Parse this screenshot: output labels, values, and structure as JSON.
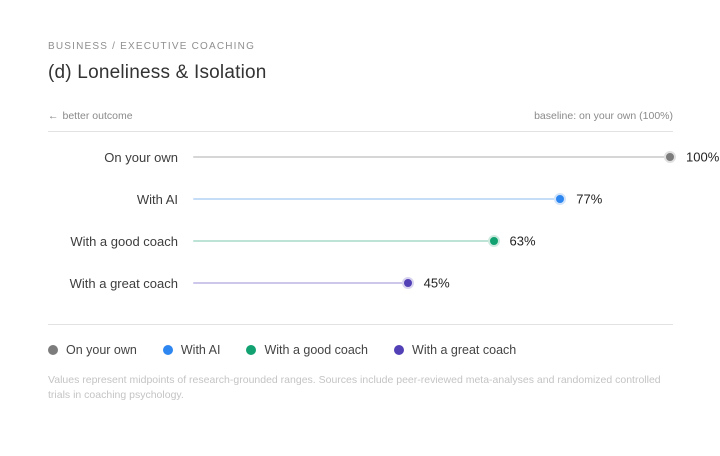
{
  "header": {
    "eyebrow": "BUSINESS / EXECUTIVE COACHING",
    "title": "(d) Loneliness & Isolation"
  },
  "meta": {
    "arrow": "←",
    "better_label": "better outcome",
    "baseline": "baseline: on your own (100%)"
  },
  "footnote": "Values represent midpoints of research-grounded ranges. Sources include peer-reviewed meta-analyses and randomized controlled trials in coaching psychology.",
  "chart_data": {
    "type": "bar",
    "variant": "horizontal-lollipop",
    "title": "(d) Loneliness & Isolation",
    "categories": [
      "On your own",
      "With AI",
      "With a good coach",
      "With a great coach"
    ],
    "values": [
      100,
      77,
      63,
      45
    ],
    "unit": "%",
    "xlim": [
      0,
      100
    ],
    "baseline_note": "baseline: on your own (100%)",
    "better_direction": "left (lower is better)",
    "grid": false,
    "legend_position": "bottom",
    "points": [
      {
        "name": "On your own",
        "value": 100,
        "label": "100%",
        "color": "#7c7c7c",
        "line_color": "#d6d6d6",
        "ring_color": "#e0e0e0"
      },
      {
        "name": "With AI",
        "value": 77,
        "label": "77%",
        "color": "#2e86f0",
        "line_color": "#c6ddf8",
        "ring_color": "#d2e4fa"
      },
      {
        "name": "With a good coach",
        "value": 63,
        "label": "63%",
        "color": "#12a170",
        "line_color": "#bce3d5",
        "ring_color": "#cdeadf"
      },
      {
        "name": "With a great coach",
        "value": 45,
        "label": "45%",
        "color": "#5240b6",
        "line_color": "#cdc8eb",
        "ring_color": "#d8d4f0"
      }
    ]
  }
}
